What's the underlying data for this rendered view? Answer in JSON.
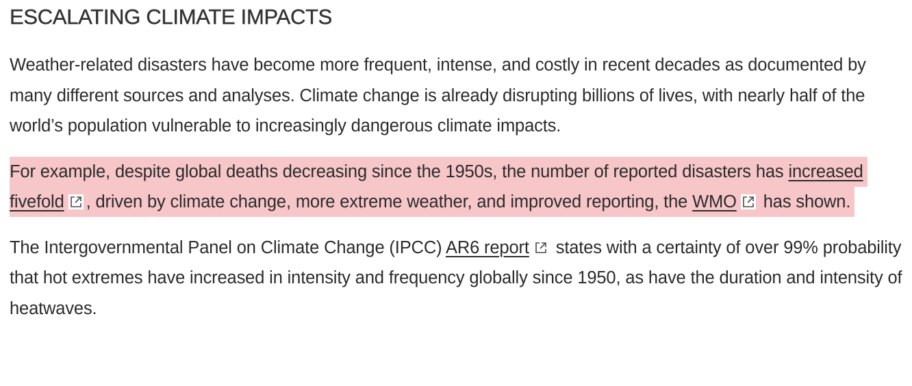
{
  "article": {
    "heading": "ESCALATING CLIMATE IMPACTS",
    "para1": "Weather-related disasters have become more frequent, intense, and costly in recent decades as documented by many different sources and analyses. Climate change is already disrupting billions of lives, with nearly half of the world’s population vulnerable to increasingly dangerous climate impacts.",
    "para2": {
      "text_a": "For example, despite global deaths decreasing since the 1950s, the number of reported disasters has ",
      "link_1": "increased fivefold",
      "text_b": ", driven by climate change, more extreme weather, and improved reporting, the ",
      "link_2": "WMO",
      "text_c": " has shown.",
      "highlight_color": "#f7c6c9"
    },
    "para3": {
      "text_a": "The Intergovernmental Panel on Climate Change (IPCC) ",
      "link": "AR6 report",
      "text_b": " states with a certainty of over 99% probability that hot extremes have increased in intensity and frequency globally since 1950, as have the duration and intensity of heatwaves."
    },
    "icons": {
      "external_link": "external-link-icon"
    }
  }
}
